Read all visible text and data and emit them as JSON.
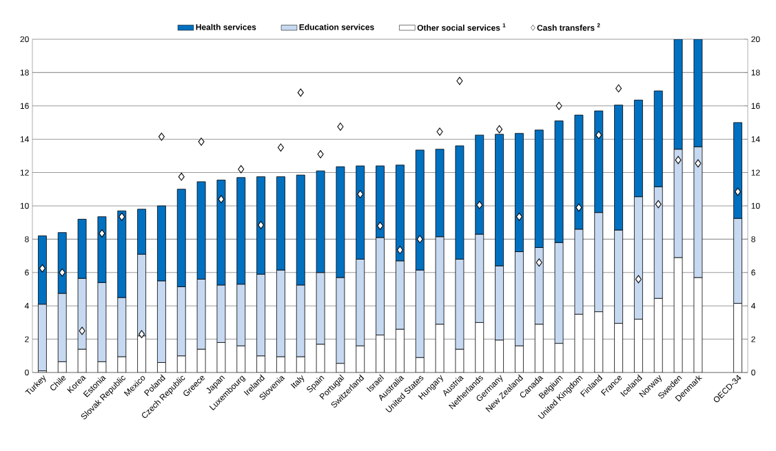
{
  "chart_data": {
    "type": "bar",
    "stacked": true,
    "categories": [
      "Turkey",
      "Chile",
      "Korea",
      "Estonia",
      "Slovak Republic",
      "Mexico",
      "Poland",
      "Czech Republic",
      "Greece",
      "Japan",
      "Luxembourg",
      "Ireland",
      "Slovenia",
      "Italy",
      "Spain",
      "Portugal",
      "Switzerland",
      "Israel",
      "Australia",
      "United States",
      "Hungary",
      "Austria",
      "Netherlands",
      "Germany",
      "New Zealand",
      "Canada",
      "Belgium",
      "United Kingdom",
      "Finland",
      "France",
      "Iceland",
      "Norway",
      "Sweden",
      "Denmark",
      null,
      "OECD-34"
    ],
    "series": [
      {
        "name": "Other social services $^{1}$",
        "color": "#ffffff",
        "values": [
          0.1,
          0.65,
          1.4,
          0.65,
          0.95,
          2.2,
          0.6,
          1.0,
          1.4,
          1.8,
          1.6,
          1.0,
          0.95,
          0.95,
          1.7,
          0.55,
          1.6,
          2.25,
          2.6,
          0.9,
          2.9,
          1.4,
          3.0,
          1.95,
          1.6,
          2.9,
          1.75,
          3.5,
          3.65,
          2.95,
          3.2,
          4.45,
          6.9,
          5.7,
          null,
          4.15
        ]
      },
      {
        "name": "Education services",
        "color": "#c6d9f1",
        "values": [
          4.0,
          4.1,
          4.25,
          4.75,
          3.55,
          4.9,
          4.9,
          4.15,
          4.2,
          3.45,
          3.7,
          4.9,
          5.2,
          4.3,
          4.3,
          5.15,
          5.2,
          5.85,
          4.1,
          5.25,
          5.25,
          5.4,
          5.3,
          4.45,
          5.65,
          4.6,
          6.05,
          5.1,
          5.95,
          5.6,
          7.35,
          6.7,
          6.5,
          7.85,
          null,
          5.1
        ]
      },
      {
        "name": "Health services",
        "color": "#0070c0",
        "values": [
          4.1,
          3.65,
          3.55,
          3.95,
          5.2,
          2.7,
          4.5,
          5.85,
          5.85,
          6.3,
          6.4,
          5.85,
          5.6,
          6.6,
          6.1,
          6.65,
          5.6,
          4.3,
          5.75,
          7.2,
          5.25,
          6.8,
          5.95,
          7.9,
          7.1,
          7.05,
          7.3,
          6.85,
          6.1,
          7.5,
          5.8,
          5.75,
          6.6,
          6.45,
          null,
          5.75
        ]
      },
      {
        "name": "Cash transfers $^{2}$",
        "type": "scatter",
        "color": "#ffffff",
        "values": [
          6.25,
          6.0,
          2.5,
          8.35,
          9.35,
          2.3,
          14.15,
          11.75,
          13.85,
          10.4,
          12.2,
          8.85,
          13.5,
          16.8,
          13.1,
          14.75,
          10.7,
          8.8,
          7.35,
          8.0,
          14.45,
          17.5,
          10.05,
          14.6,
          9.35,
          6.6,
          16.0,
          9.9,
          14.25,
          17.05,
          5.6,
          10.1,
          12.75,
          12.55,
          null,
          10.85
        ]
      }
    ],
    "marker": "diamond",
    "ylim": [
      0,
      20
    ],
    "yticks": [
      0,
      2,
      4,
      6,
      8,
      10,
      12,
      14,
      16,
      18,
      20
    ],
    "y2lim": [
      0,
      20
    ],
    "y2ticks": [
      0,
      2,
      4,
      6,
      8,
      10,
      12,
      14,
      16,
      18,
      20
    ],
    "grid": "y",
    "legend": "top"
  }
}
